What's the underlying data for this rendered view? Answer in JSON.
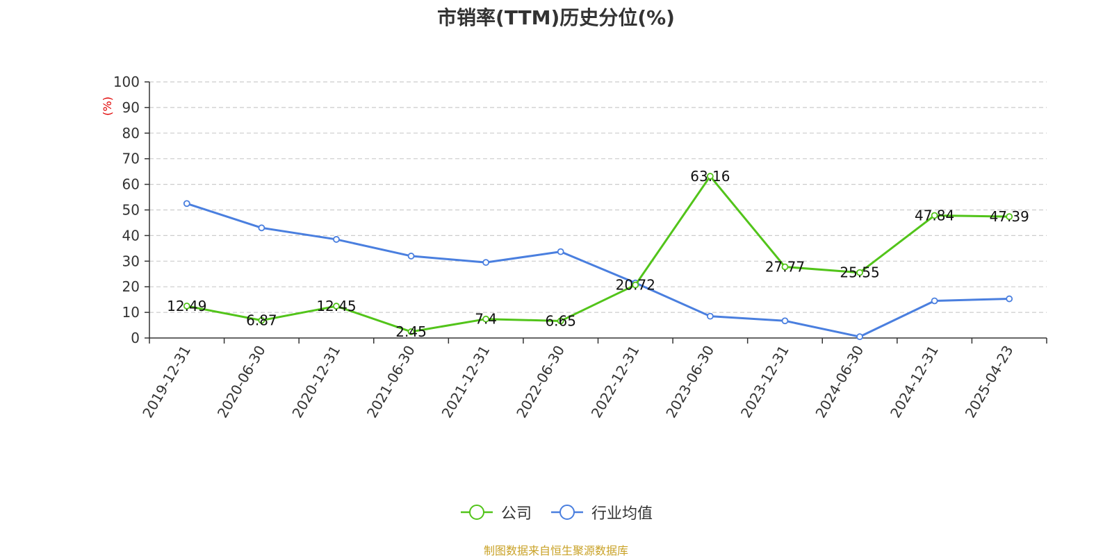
{
  "title": "市销率(TTM)历史分位(%)",
  "source_note": "制图数据来自恒生聚源数据库",
  "chart_data": {
    "type": "line",
    "title": "市销率(TTM)历史分位(%)",
    "ylabel": "(%)",
    "xlabel": "",
    "ylim": [
      0,
      100
    ],
    "yticks": [
      0,
      10,
      20,
      30,
      40,
      50,
      60,
      70,
      80,
      90,
      100
    ],
    "grid": true,
    "legend_position": "bottom-center",
    "categories": [
      "2019-12-31",
      "2020-06-30",
      "2020-12-31",
      "2021-06-30",
      "2021-12-31",
      "2022-06-30",
      "2022-12-31",
      "2023-06-30",
      "2023-12-31",
      "2024-06-30",
      "2024-12-31",
      "2025-04-23"
    ],
    "series": [
      {
        "name": "公司",
        "color": "#52c41a",
        "values": [
          12.49,
          6.87,
          12.45,
          2.45,
          7.4,
          6.65,
          20.72,
          63.16,
          27.77,
          25.55,
          47.84,
          47.39
        ],
        "labels": [
          "12.49",
          "6.87",
          "12.45",
          "2.45",
          "7.4",
          "6.65",
          "20.72",
          "63.16",
          "27.77",
          "25.55",
          "47.84",
          "47.39"
        ]
      },
      {
        "name": "行业均值",
        "color": "#4a7fdf",
        "values": [
          52.5,
          43,
          38.5,
          32,
          29.5,
          33.7,
          21.5,
          8.5,
          6.7,
          0.5,
          14.5,
          15.3
        ]
      }
    ]
  },
  "colors": {
    "axis": "#333333",
    "grid": "#cccccc",
    "unit_label": "#e00000",
    "title": "#333333",
    "source_note": "#c9a227"
  }
}
